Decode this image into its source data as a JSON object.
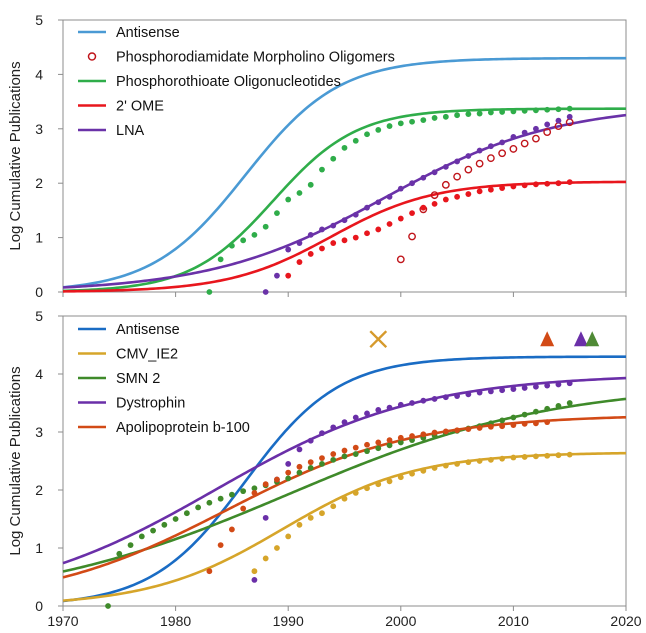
{
  "chart_data": [
    {
      "type": "scatter",
      "xlim": [
        1970,
        2020
      ],
      "ylim": [
        0,
        5
      ],
      "ylabel": "Log Cumulative Publications",
      "xticks": [],
      "yticks": [
        "0",
        "1",
        "2",
        "3",
        "4",
        "5"
      ],
      "legend_position": "top-left",
      "grid": false,
      "series": [
        {
          "name": "Antisense",
          "kind": "line",
          "color": "#4a9ad4",
          "fit": {
            "L": 4.3,
            "k": 0.24,
            "x0": 1986.2
          }
        },
        {
          "name": "Phosphorodiamidate Morpholino Oligomers",
          "kind": "points-open",
          "color": "#c0151b",
          "x": [
            2000,
            2001,
            2002,
            2003,
            2004,
            2005,
            2006,
            2007,
            2008,
            2009,
            2010,
            2011,
            2012,
            2013,
            2014,
            2015
          ],
          "y": [
            0.6,
            1.02,
            1.52,
            1.78,
            1.97,
            2.12,
            2.25,
            2.36,
            2.46,
            2.55,
            2.63,
            2.73,
            2.82,
            2.94,
            3.05,
            3.12
          ]
        },
        {
          "name": "Phosphorothioate Oligonucleotides",
          "kind": "line+points",
          "color": "#2fad4a",
          "fit": {
            "L": 3.37,
            "k": 0.27,
            "x0": 1988.7
          },
          "x": [
            1983,
            1984,
            1985,
            1986,
            1987,
            1988,
            1989,
            1990,
            1991,
            1992,
            1993,
            1994,
            1995,
            1996,
            1997,
            1998,
            1999,
            2000,
            2001,
            2002,
            2003,
            2004,
            2005,
            2006,
            2007,
            2008,
            2009,
            2010,
            2011,
            2012,
            2013,
            2014,
            2015
          ],
          "y": [
            0.0,
            0.6,
            0.85,
            0.95,
            1.05,
            1.2,
            1.45,
            1.7,
            1.82,
            1.97,
            2.25,
            2.45,
            2.65,
            2.78,
            2.9,
            2.98,
            3.05,
            3.1,
            3.13,
            3.16,
            3.2,
            3.22,
            3.25,
            3.27,
            3.28,
            3.3,
            3.31,
            3.32,
            3.33,
            3.34,
            3.35,
            3.36,
            3.37
          ]
        },
        {
          "name": "2' OME",
          "kind": "line+points",
          "color": "#e8161d",
          "fit": {
            "L": 2.03,
            "k": 0.22,
            "x0": 1993.8
          },
          "x": [
            1990,
            1991,
            1992,
            1993,
            1994,
            1995,
            1996,
            1997,
            1998,
            1999,
            2000,
            2001,
            2002,
            2003,
            2004,
            2005,
            2006,
            2007,
            2008,
            2009,
            2010,
            2011,
            2012,
            2013,
            2014,
            2015
          ],
          "y": [
            0.3,
            0.55,
            0.7,
            0.8,
            0.9,
            0.95,
            1.0,
            1.08,
            1.15,
            1.25,
            1.35,
            1.45,
            1.55,
            1.62,
            1.7,
            1.75,
            1.8,
            1.85,
            1.88,
            1.91,
            1.94,
            1.96,
            1.98,
            1.99,
            2.0,
            2.02
          ]
        },
        {
          "name": "LNA",
          "kind": "line+points",
          "color": "#6a32a8",
          "fit": {
            "L": 3.45,
            "k": 0.13,
            "x0": 1998.5
          },
          "x": [
            1988,
            1989,
            1990,
            1991,
            1992,
            1993,
            1994,
            1995,
            1996,
            1997,
            1998,
            1999,
            2000,
            2001,
            2002,
            2003,
            2004,
            2005,
            2006,
            2007,
            2008,
            2009,
            2010,
            2011,
            2012,
            2013,
            2014,
            2015
          ],
          "y": [
            0.0,
            0.3,
            0.78,
            0.9,
            1.05,
            1.15,
            1.22,
            1.32,
            1.42,
            1.55,
            1.65,
            1.75,
            1.9,
            2.0,
            2.1,
            2.2,
            2.3,
            2.4,
            2.5,
            2.6,
            2.68,
            2.75,
            2.85,
            2.93,
            3.0,
            3.08,
            3.15,
            3.22
          ]
        }
      ]
    },
    {
      "type": "scatter",
      "xlim": [
        1970,
        2020
      ],
      "ylim": [
        0,
        5
      ],
      "ylabel": "Log Cumulative Publications",
      "xticks": [
        "1970",
        "1980",
        "1990",
        "2000",
        "2010",
        "2020"
      ],
      "yticks": [
        "0",
        "1",
        "2",
        "3",
        "4",
        "5"
      ],
      "legend_position": "top-left",
      "grid": false,
      "series": [
        {
          "name": "Antisense",
          "kind": "line",
          "color": "#1a6cc4",
          "fit": {
            "L": 4.3,
            "k": 0.24,
            "x0": 1986.2
          }
        },
        {
          "name": "CMV_IE2",
          "kind": "line+points",
          "color": "#d6a52a",
          "fit": {
            "L": 2.65,
            "k": 0.17,
            "x0": 1989.5
          },
          "x": [
            1987,
            1988,
            1989,
            1990,
            1991,
            1992,
            1993,
            1994,
            1995,
            1996,
            1997,
            1998,
            1999,
            2000,
            2001,
            2002,
            2003,
            2004,
            2005,
            2006,
            2007,
            2008,
            2009,
            2010,
            2011,
            2012,
            2013,
            2014,
            2015
          ],
          "y": [
            0.6,
            0.82,
            1.0,
            1.2,
            1.4,
            1.52,
            1.6,
            1.72,
            1.85,
            1.95,
            2.03,
            2.1,
            2.15,
            2.22,
            2.28,
            2.33,
            2.38,
            2.42,
            2.45,
            2.48,
            2.5,
            2.52,
            2.54,
            2.56,
            2.57,
            2.58,
            2.59,
            2.6,
            2.61
          ]
        },
        {
          "name": "SMN 2",
          "kind": "line+points",
          "color": "#3f8a2a",
          "fit": {
            "L": 3.85,
            "k": 0.085,
            "x0": 1990.0
          },
          "x": [
            1974,
            1975,
            1976,
            1977,
            1978,
            1979,
            1980,
            1981,
            1982,
            1983,
            1984,
            1985,
            1986,
            1987,
            1988,
            1989,
            1990,
            1991,
            1992,
            1993,
            1994,
            1995,
            1996,
            1997,
            1998,
            1999,
            2000,
            2001,
            2002,
            2003,
            2004,
            2005,
            2006,
            2007,
            2008,
            2009,
            2010,
            2011,
            2012,
            2013,
            2014,
            2015
          ],
          "y": [
            0.0,
            0.9,
            1.05,
            1.2,
            1.3,
            1.4,
            1.5,
            1.6,
            1.7,
            1.78,
            1.85,
            1.92,
            1.98,
            2.03,
            2.08,
            2.14,
            2.2,
            2.3,
            2.38,
            2.45,
            2.52,
            2.58,
            2.62,
            2.67,
            2.72,
            2.77,
            2.82,
            2.86,
            2.9,
            2.94,
            2.98,
            3.02,
            3.06,
            3.1,
            3.15,
            3.2,
            3.25,
            3.3,
            3.35,
            3.4,
            3.45,
            3.5
          ]
        },
        {
          "name": "Dystrophin",
          "kind": "line+points",
          "color": "#6a2fa8",
          "fit": {
            "L": 4.0,
            "k": 0.11,
            "x0": 1983.5
          },
          "x": [
            1987,
            1988,
            1989,
            1990,
            1991,
            1992,
            1993,
            1994,
            1995,
            1996,
            1997,
            1998,
            1999,
            2000,
            2001,
            2002,
            2003,
            2004,
            2005,
            2006,
            2007,
            2008,
            2009,
            2010,
            2011,
            2012,
            2013,
            2014,
            2015
          ],
          "y": [
            0.45,
            1.52,
            2.18,
            2.45,
            2.7,
            2.85,
            2.98,
            3.08,
            3.17,
            3.25,
            3.32,
            3.38,
            3.42,
            3.47,
            3.5,
            3.54,
            3.57,
            3.6,
            3.62,
            3.65,
            3.68,
            3.7,
            3.72,
            3.74,
            3.76,
            3.78,
            3.8,
            3.82,
            3.84
          ]
        },
        {
          "name": "Apolipoprotein b-100",
          "kind": "line+points",
          "color": "#d24a16",
          "fit": {
            "L": 3.3,
            "k": 0.12,
            "x0": 1984.5
          },
          "x": [
            1983,
            1984,
            1985,
            1986,
            1987,
            1988,
            1989,
            1990,
            1991,
            1992,
            1993,
            1994,
            1995,
            1996,
            1997,
            1998,
            1999,
            2000,
            2001,
            2002,
            2003,
            2004,
            2005,
            2006,
            2007,
            2008,
            2009,
            2010,
            2011,
            2012,
            2013
          ],
          "y": [
            0.6,
            1.05,
            1.32,
            1.68,
            1.95,
            2.1,
            2.18,
            2.3,
            2.4,
            2.48,
            2.55,
            2.62,
            2.68,
            2.73,
            2.78,
            2.82,
            2.86,
            2.9,
            2.93,
            2.96,
            2.99,
            3.01,
            3.03,
            3.05,
            3.07,
            3.09,
            3.1,
            3.12,
            3.14,
            3.15,
            3.17
          ]
        }
      ],
      "markers": [
        {
          "shape": "x",
          "x": 1998,
          "y": 4.6,
          "color": "#d69a2c"
        },
        {
          "shape": "triangle",
          "x": 2013,
          "y": 4.6,
          "color": "#d24a16"
        },
        {
          "shape": "triangle",
          "x": 2016,
          "y": 4.6,
          "color": "#6a2fa8"
        },
        {
          "shape": "triangle",
          "x": 2017,
          "y": 4.6,
          "color": "#4f8a35"
        }
      ]
    }
  ]
}
